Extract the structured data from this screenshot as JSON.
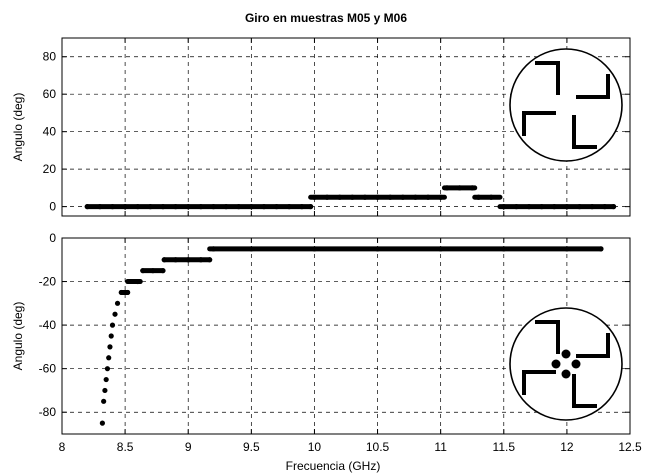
{
  "chart_data": [
    {
      "type": "scatter",
      "title": "Giro en muestras M05 y M06",
      "xlabel": "",
      "ylabel": "Angulo (deg)",
      "xlim": [
        8,
        12.5
      ],
      "ylim": [
        -5,
        90
      ],
      "xticks": [
        8,
        8.5,
        9,
        9.5,
        10,
        10.5,
        11,
        11.5,
        12,
        12.5
      ],
      "yticks": [
        0,
        20,
        40,
        60,
        80
      ],
      "grid": true,
      "inset_icon": "four-hook-pinwheel-in-circle",
      "segments": [
        {
          "x_start": 8.2,
          "x_end": 9.97,
          "y": 0
        },
        {
          "x_start": 9.97,
          "x_end": 11.03,
          "y": 5
        },
        {
          "x_start": 11.03,
          "x_end": 11.27,
          "y": 10
        },
        {
          "x_start": 11.27,
          "x_end": 11.47,
          "y": 5
        },
        {
          "x_start": 11.47,
          "x_end": 12.37,
          "y": 0
        }
      ],
      "series": [
        {
          "x": [
            8.2,
            8.3,
            8.4,
            8.5,
            8.6,
            8.7,
            8.8,
            8.9,
            9.0,
            9.1,
            9.2,
            9.3,
            9.4,
            9.5,
            9.6,
            9.7,
            9.8,
            9.9,
            9.97,
            10.0,
            10.1,
            10.2,
            10.3,
            10.4,
            10.5,
            10.6,
            10.7,
            10.8,
            10.9,
            11.0,
            11.05,
            11.15,
            11.25,
            11.3,
            11.4,
            11.5,
            11.6,
            11.7,
            11.8,
            11.9,
            12.0,
            12.1,
            12.2,
            12.3,
            12.37
          ],
          "y": [
            0,
            0,
            0,
            0,
            0,
            0,
            0,
            0,
            0,
            0,
            0,
            0,
            0,
            0,
            0,
            0,
            0,
            0,
            0,
            5,
            5,
            5,
            5,
            5,
            5,
            5,
            5,
            5,
            5,
            5,
            10,
            10,
            10,
            5,
            5,
            0,
            0,
            0,
            0,
            0,
            0,
            0,
            0,
            0,
            0
          ]
        }
      ]
    },
    {
      "type": "scatter",
      "title": "",
      "xlabel": "Frecuencia (GHz)",
      "ylabel": "Angulo (deg)",
      "xlim": [
        8,
        12.5
      ],
      "ylim": [
        -90,
        0
      ],
      "xticks": [
        8,
        8.5,
        9,
        9.5,
        10,
        10.5,
        11,
        11.5,
        12,
        12.5
      ],
      "yticks": [
        0,
        -20,
        -40,
        -60,
        -80
      ],
      "grid": true,
      "inset_icon": "four-hook-pinwheel-with-dots-in-circle",
      "segments": [
        {
          "x_start": 8.47,
          "x_end": 8.52,
          "y": -25
        },
        {
          "x_start": 8.52,
          "x_end": 8.62,
          "y": -20
        },
        {
          "x_start": 8.64,
          "x_end": 8.8,
          "y": -15
        },
        {
          "x_start": 8.81,
          "x_end": 9.17,
          "y": -10
        },
        {
          "x_start": 9.17,
          "x_end": 12.27,
          "y": -5
        }
      ],
      "series": [
        {
          "x": [
            8.32,
            8.33,
            8.34,
            8.35,
            8.36,
            8.37,
            8.38,
            8.39,
            8.4,
            8.42,
            8.44,
            8.47,
            8.52,
            8.6,
            8.64,
            8.72,
            8.8,
            8.81,
            8.9,
            9.0,
            9.1,
            9.17,
            9.2,
            9.5,
            10.0,
            10.5,
            11.0,
            11.5,
            12.0,
            12.27
          ],
          "y": [
            -85,
            -75,
            -70,
            -65,
            -60,
            -55,
            -50,
            -45,
            -40,
            -35,
            -30,
            -25,
            -25,
            -20,
            -15,
            -15,
            -15,
            -10,
            -10,
            -10,
            -10,
            -10,
            -5,
            -5,
            -5,
            -5,
            -5,
            -5,
            -5,
            -5
          ]
        }
      ]
    }
  ]
}
